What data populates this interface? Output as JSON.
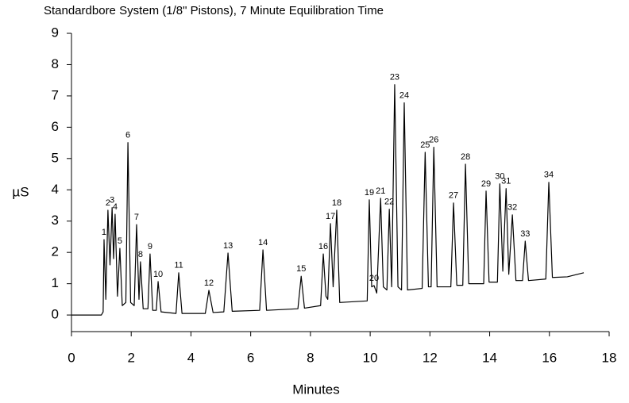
{
  "chart_data": {
    "type": "line",
    "title": "Standardbore System (1/8\" Pistons), 7 Minute Equilibration Time",
    "xlabel": "Minutes",
    "ylabel": "µS",
    "xlim": [
      0,
      18
    ],
    "xticks": [
      0,
      2,
      4,
      6,
      8,
      10,
      12,
      14,
      16,
      18
    ],
    "ylim": [
      -0.53,
      9
    ],
    "yticks": [
      0,
      1,
      2,
      3,
      4,
      5,
      6,
      7,
      8,
      9
    ],
    "color": "#000000",
    "x": [
      0.0,
      1.0,
      1.06,
      1.09,
      1.15,
      1.22,
      1.29,
      1.36,
      1.41,
      1.46,
      1.54,
      1.62,
      1.7,
      1.82,
      1.89,
      1.98,
      2.1,
      2.18,
      2.26,
      2.31,
      2.4,
      2.56,
      2.63,
      2.72,
      2.84,
      2.9,
      3.0,
      3.5,
      3.59,
      3.7,
      4.48,
      4.6,
      4.74,
      5.1,
      5.24,
      5.38,
      6.3,
      6.41,
      6.53,
      7.58,
      7.69,
      7.8,
      8.34,
      8.43,
      8.52,
      8.58,
      8.67,
      8.76,
      8.88,
      8.98,
      9.9,
      9.97,
      10.05,
      10.13,
      10.22,
      10.35,
      10.44,
      10.56,
      10.64,
      10.72,
      10.82,
      10.93,
      11.05,
      11.14,
      11.25,
      11.74,
      11.84,
      11.95,
      12.04,
      12.13,
      12.24,
      12.7,
      12.79,
      12.9,
      13.1,
      13.19,
      13.3,
      13.8,
      13.88,
      13.98,
      14.26,
      14.34,
      14.44,
      14.55,
      14.64,
      14.76,
      14.88,
      15.1,
      15.19,
      15.3,
      15.88,
      15.98,
      16.1,
      16.6,
      17.15
    ],
    "values": [
      0,
      0,
      0.1,
      2.41,
      0.5,
      3.35,
      1.6,
      3.43,
      1.8,
      3.22,
      0.6,
      2.13,
      0.3,
      0.4,
      5.51,
      0.4,
      0.3,
      2.89,
      0.5,
      1.7,
      0.2,
      0.2,
      1.95,
      0.15,
      0.15,
      1.07,
      0.1,
      0.05,
      1.35,
      0.05,
      0.05,
      0.79,
      0.08,
      0.1,
      1.98,
      0.12,
      0.15,
      2.08,
      0.15,
      0.2,
      1.24,
      0.22,
      0.3,
      1.95,
      0.6,
      0.5,
      2.92,
      0.9,
      3.35,
      0.4,
      0.45,
      3.68,
      0.9,
      0.94,
      0.7,
      3.73,
      0.9,
      0.8,
      3.38,
      0.9,
      7.36,
      0.9,
      0.8,
      6.78,
      0.8,
      0.85,
      5.2,
      0.9,
      0.9,
      5.36,
      0.9,
      0.9,
      3.58,
      0.95,
      0.95,
      4.82,
      1.0,
      1.0,
      3.96,
      1.05,
      1.05,
      4.19,
      1.4,
      4.04,
      1.3,
      3.2,
      1.1,
      1.1,
      2.36,
      1.1,
      1.15,
      4.24,
      1.2,
      1.22,
      1.35
    ],
    "annotations": [
      {
        "text": "1",
        "x": 1.09,
        "y": 2.41
      },
      {
        "text": "2",
        "x": 1.22,
        "y": 3.35
      },
      {
        "text": "3",
        "x": 1.36,
        "y": 3.43
      },
      {
        "text": "4",
        "x": 1.46,
        "y": 3.22
      },
      {
        "text": "5",
        "x": 1.62,
        "y": 2.13
      },
      {
        "text": "6",
        "x": 1.89,
        "y": 5.51
      },
      {
        "text": "7",
        "x": 2.18,
        "y": 2.89
      },
      {
        "text": "8",
        "x": 2.31,
        "y": 1.7
      },
      {
        "text": "9",
        "x": 2.63,
        "y": 1.95
      },
      {
        "text": "10",
        "x": 2.9,
        "y": 1.07
      },
      {
        "text": "11",
        "x": 3.59,
        "y": 1.35
      },
      {
        "text": "12",
        "x": 4.6,
        "y": 0.79
      },
      {
        "text": "13",
        "x": 5.24,
        "y": 1.98
      },
      {
        "text": "14",
        "x": 6.41,
        "y": 2.08
      },
      {
        "text": "15",
        "x": 7.69,
        "y": 1.24
      },
      {
        "text": "16",
        "x": 8.43,
        "y": 1.95
      },
      {
        "text": "17",
        "x": 8.67,
        "y": 2.92
      },
      {
        "text": "18",
        "x": 8.88,
        "y": 3.35
      },
      {
        "text": "19",
        "x": 9.97,
        "y": 3.68
      },
      {
        "text": "20",
        "x": 10.13,
        "y": 0.94
      },
      {
        "text": "21",
        "x": 10.35,
        "y": 3.73
      },
      {
        "text": "22",
        "x": 10.64,
        "y": 3.38
      },
      {
        "text": "23",
        "x": 10.82,
        "y": 7.36
      },
      {
        "text": "24",
        "x": 11.14,
        "y": 6.78
      },
      {
        "text": "25",
        "x": 11.84,
        "y": 5.2
      },
      {
        "text": "26",
        "x": 12.13,
        "y": 5.36
      },
      {
        "text": "27",
        "x": 12.79,
        "y": 3.58
      },
      {
        "text": "28",
        "x": 13.19,
        "y": 4.82
      },
      {
        "text": "29",
        "x": 13.88,
        "y": 3.96
      },
      {
        "text": "30",
        "x": 14.34,
        "y": 4.19
      },
      {
        "text": "31",
        "x": 14.55,
        "y": 4.04
      },
      {
        "text": "32",
        "x": 14.76,
        "y": 3.2
      },
      {
        "text": "33",
        "x": 15.19,
        "y": 2.36
      },
      {
        "text": "34",
        "x": 15.98,
        "y": 4.24
      }
    ]
  }
}
